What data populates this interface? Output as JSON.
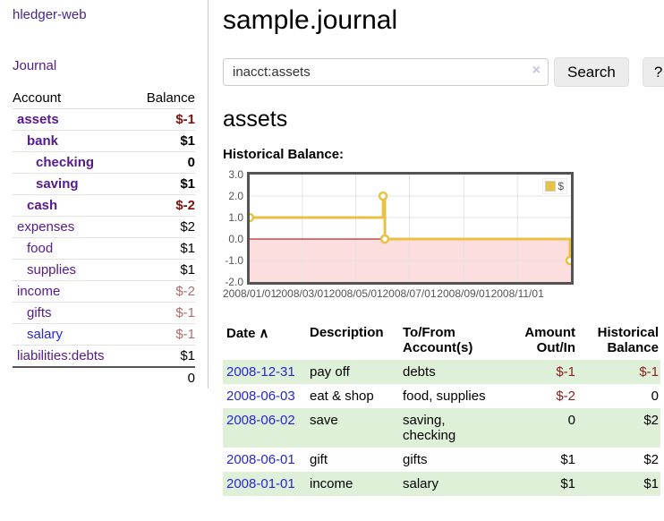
{
  "brand": "hledger-web",
  "sidebar": {
    "journal_link": "Journal",
    "headers": {
      "account": "Account",
      "balance": "Balance"
    },
    "accounts": [
      {
        "name": "assets",
        "balance": "$-1"
      },
      {
        "name": "bank",
        "balance": "$1"
      },
      {
        "name": "checking",
        "balance": "0"
      },
      {
        "name": "saving",
        "balance": "$1"
      },
      {
        "name": "cash",
        "balance": "$-2"
      },
      {
        "name": "expenses",
        "balance": "$2"
      },
      {
        "name": "food",
        "balance": "$1"
      },
      {
        "name": "supplies",
        "balance": "$1"
      },
      {
        "name": "income",
        "balance": "$-2"
      },
      {
        "name": "gifts",
        "balance": "$-1"
      },
      {
        "name": "salary",
        "balance": "$-1"
      },
      {
        "name": "liabilities:debts",
        "balance": "$1"
      }
    ],
    "total": "0"
  },
  "main": {
    "title": "sample.journal",
    "search": {
      "value": "inacct:assets",
      "clear_icon": "×",
      "search_label": "Search",
      "help_label": "?"
    },
    "account_heading": "assets",
    "chart_title": "Historical Balance:"
  },
  "register": {
    "headers": {
      "date": "Date",
      "sort_icon": "∧",
      "description": "Description",
      "to_from": "To/From\nAccount(s)",
      "amount": "Amount\nOut/In",
      "balance": "Historical\nBalance"
    },
    "rows": [
      {
        "date": "2008-12-31",
        "description": "pay off",
        "to_from": "debts",
        "amount": "$-1",
        "balance": "$-1"
      },
      {
        "date": "2008-06-03",
        "description": "eat & shop",
        "to_from": "food, supplies",
        "amount": "$-2",
        "balance": "0"
      },
      {
        "date": "2008-06-02",
        "description": "save",
        "to_from": "saving,\nchecking",
        "amount": "0",
        "balance": "$2"
      },
      {
        "date": "2008-06-01",
        "description": "gift",
        "to_from": "gifts",
        "amount": "$1",
        "balance": "$2"
      },
      {
        "date": "2008-01-01",
        "description": "income",
        "to_from": "salary",
        "amount": "$1",
        "balance": "$1"
      }
    ]
  },
  "chart_data": {
    "type": "line",
    "step": true,
    "title": "Historical Balance:",
    "series": [
      {
        "name": "$",
        "color": "#e8c240",
        "points": [
          [
            "2008-01-01",
            1
          ],
          [
            "2008-06-01",
            2
          ],
          [
            "2008-06-03",
            0
          ],
          [
            "2008-12-31",
            -1
          ]
        ]
      }
    ],
    "x_range": [
      "2008-01-01",
      "2009-01-01"
    ],
    "ylim": [
      -2,
      3
    ],
    "y_ticks": [
      3,
      2,
      1,
      0,
      -1,
      -2
    ],
    "y_tick_labels": [
      "3.0",
      "2.0",
      "1.0",
      "0.0",
      "-1.0",
      "-2.0"
    ],
    "x_tick_labels": [
      "2008/01/01",
      "2008/03/01",
      "2008/05/01",
      "2008/07/01",
      "2008/09/01",
      "2008/11/01"
    ],
    "legend_position": "top-right",
    "grid": true,
    "grid_color": "#e3e3e3",
    "negative_region_color": "#fcdede",
    "zero_line_color": "#990000"
  }
}
